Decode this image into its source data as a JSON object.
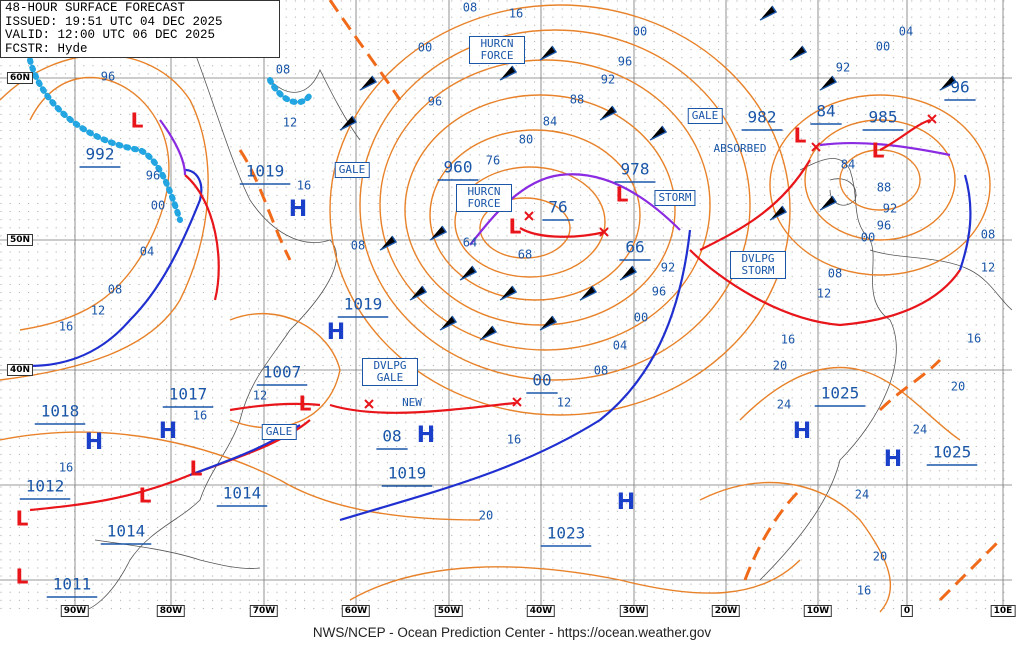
{
  "header": {
    "lines": [
      "48-HOUR SURFACE FORECAST",
      "ISSUED: 19:51 UTC 04 DEC 2025",
      "VALID: 12:00 UTC 06 DEC 2025",
      "FCSTR: Hyde"
    ]
  },
  "lat_labels": [
    "60N",
    "50N",
    "40N"
  ],
  "lon_labels": [
    "90W",
    "80W",
    "70W",
    "60W",
    "50W",
    "40W",
    "30W",
    "20W",
    "10W",
    "0",
    "10E"
  ],
  "center_pressures": [
    "992",
    "1019",
    "960",
    "76",
    "978",
    "66",
    "982",
    "84",
    "985",
    "96",
    "1019",
    "1007",
    "1017",
    "1018",
    "00",
    "08",
    "1019",
    "1014",
    "1012",
    "1014",
    "1023",
    "1025",
    "1025",
    "1011"
  ],
  "high_symbols": [
    "H",
    "H",
    "H",
    "H",
    "H",
    "H",
    "H",
    "H"
  ],
  "low_symbols": [
    "L",
    "L",
    "L",
    "L",
    "L",
    "L",
    "L",
    "L",
    "L",
    "L"
  ],
  "warnings": [
    "HURCN FORCE",
    "GALE",
    "HURCN FORCE",
    "STORM",
    "GALE",
    "DVLPG STORM",
    "DVLPG GALE",
    "GALE"
  ],
  "notes": [
    "ABSORBED",
    "NEW"
  ],
  "isobar_labels": [
    "08",
    "16",
    "00",
    "00",
    "04",
    "00",
    "96",
    "08",
    "12",
    "96",
    "96",
    "92",
    "92",
    "88",
    "84",
    "80",
    "76",
    "96",
    "00",
    "16",
    "04",
    "08",
    "12",
    "16",
    "08",
    "64",
    "68",
    "92",
    "96",
    "00",
    "04",
    "08",
    "12",
    "16",
    "20",
    "12",
    "16",
    "16",
    "08",
    "12",
    "08",
    "12",
    "16",
    "20",
    "24",
    "16",
    "20",
    "24",
    "24",
    "20",
    "16",
    "84",
    "88",
    "92",
    "96",
    "00"
  ],
  "footer": "NWS/NCEP - Ocean Prediction Center - https://ocean.weather.gov"
}
